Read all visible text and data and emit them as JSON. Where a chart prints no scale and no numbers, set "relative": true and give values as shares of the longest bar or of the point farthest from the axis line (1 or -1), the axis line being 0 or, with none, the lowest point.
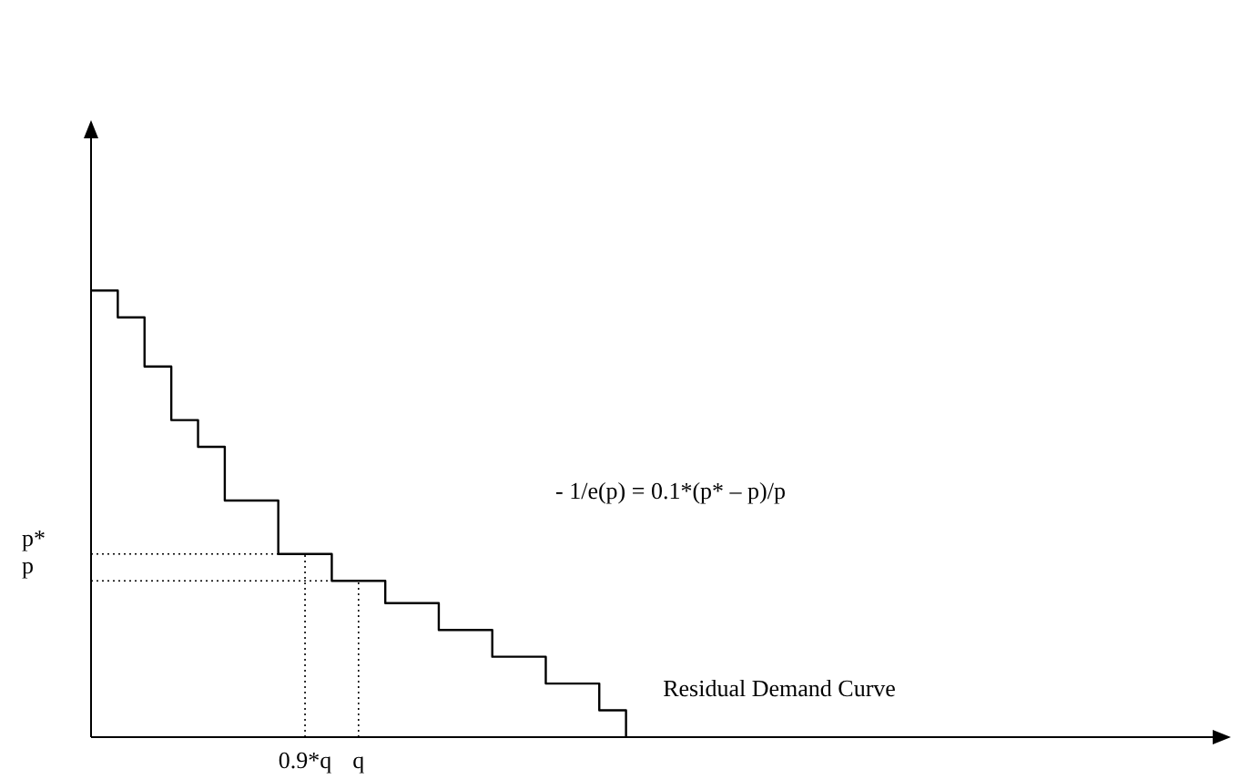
{
  "chart_data": {
    "type": "step",
    "relative": true,
    "categories": [
      null,
      null,
      null,
      null,
      null,
      null,
      null,
      null,
      "0.9*q",
      null,
      "q",
      null,
      null,
      null,
      null,
      null,
      null,
      null,
      null,
      null,
      null,
      null,
      null,
      null,
      null,
      null,
      null,
      null,
      null,
      null,
      null,
      null,
      null,
      null,
      null,
      null,
      null,
      null,
      null,
      null,
      null,
      null,
      null
    ],
    "series": [
      {
        "name": "Residual Demand Curve",
        "color": "#000000",
        "values": [
          1,
          0.94,
          0.83,
          0.71,
          0.65,
          0.53,
          0.53,
          0.41,
          0.41,
          0.35,
          0.35,
          0.3,
          0.3,
          0.24,
          0.24,
          0.18,
          0.18,
          0.12,
          0.12,
          0.06,
          0,
          null,
          null,
          null,
          null,
          null,
          null,
          null,
          null,
          null,
          null,
          null,
          null,
          null,
          null,
          null,
          null,
          null,
          null,
          null,
          null,
          null,
          null
        ]
      }
    ],
    "ref_lines": [
      {
        "axis": "y",
        "value": 0.41,
        "label": "p*",
        "line_style": "dotted"
      },
      {
        "axis": "y",
        "value": 0.35,
        "label": "p",
        "line_style": "dotted"
      },
      {
        "axis": "x",
        "value": "0.9*q",
        "line_style": "dotted"
      },
      {
        "axis": "x",
        "value": "q",
        "line_style": "dotted"
      }
    ],
    "annotations": [
      "- 1/e(p) = 0.1*(p* – p)/p"
    ],
    "marker": "none",
    "line_style": "solid"
  }
}
